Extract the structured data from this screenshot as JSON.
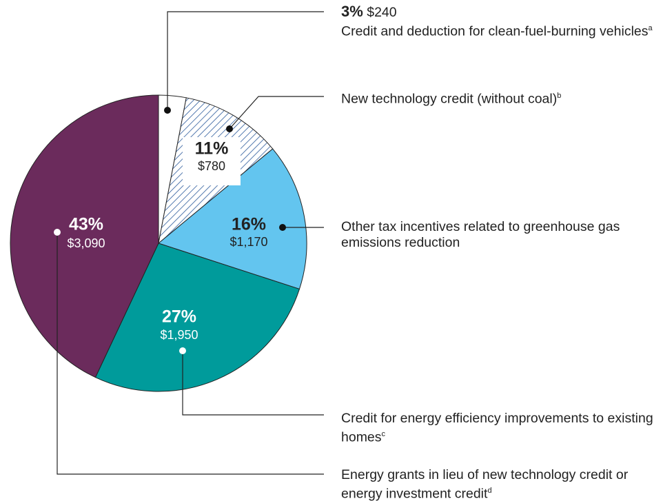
{
  "chart_data": {
    "type": "pie",
    "categories": [
      "Credit and deduction for clean-fuel-burning vehicles",
      "New technology credit (without coal)",
      "Other tax incentives related to greenhouse gas emissions reduction",
      "Credit for energy efficiency improvements to existing homes",
      "Energy grants in lieu of new technology credit or energy investment credit"
    ],
    "footnotes": [
      "a",
      "b",
      null,
      "c",
      "d"
    ],
    "values": [
      3,
      11,
      16,
      27,
      43
    ],
    "value_labels": [
      "3%",
      "11%",
      "16%",
      "27%",
      "43%"
    ],
    "amount_labels": [
      "$240",
      "$780",
      "$1,170",
      "$1,950",
      "$3,090"
    ],
    "colors": [
      "#ffffff",
      "#2b5a9c",
      "#63c5ef",
      "#009b9b",
      "#6b2b5c"
    ],
    "hatched": [
      false,
      true,
      false,
      false,
      false
    ]
  }
}
